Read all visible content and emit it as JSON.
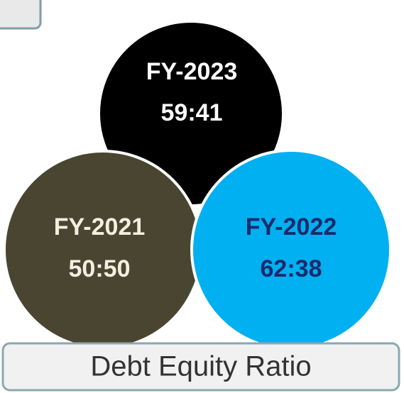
{
  "nodes": [
    {
      "label": "FY-2023",
      "value": "59:41",
      "color": "#000000",
      "text_color": "#ffffff"
    },
    {
      "label": "FY-2021",
      "value": "50:50",
      "color": "#4a4530",
      "text_color": "#f2efe2"
    },
    {
      "label": "FY-2022",
      "value": "62:38",
      "color": "#00b0f0",
      "text_color": "#1b2a6b"
    }
  ],
  "caption": "Debt Equity Ratio"
}
